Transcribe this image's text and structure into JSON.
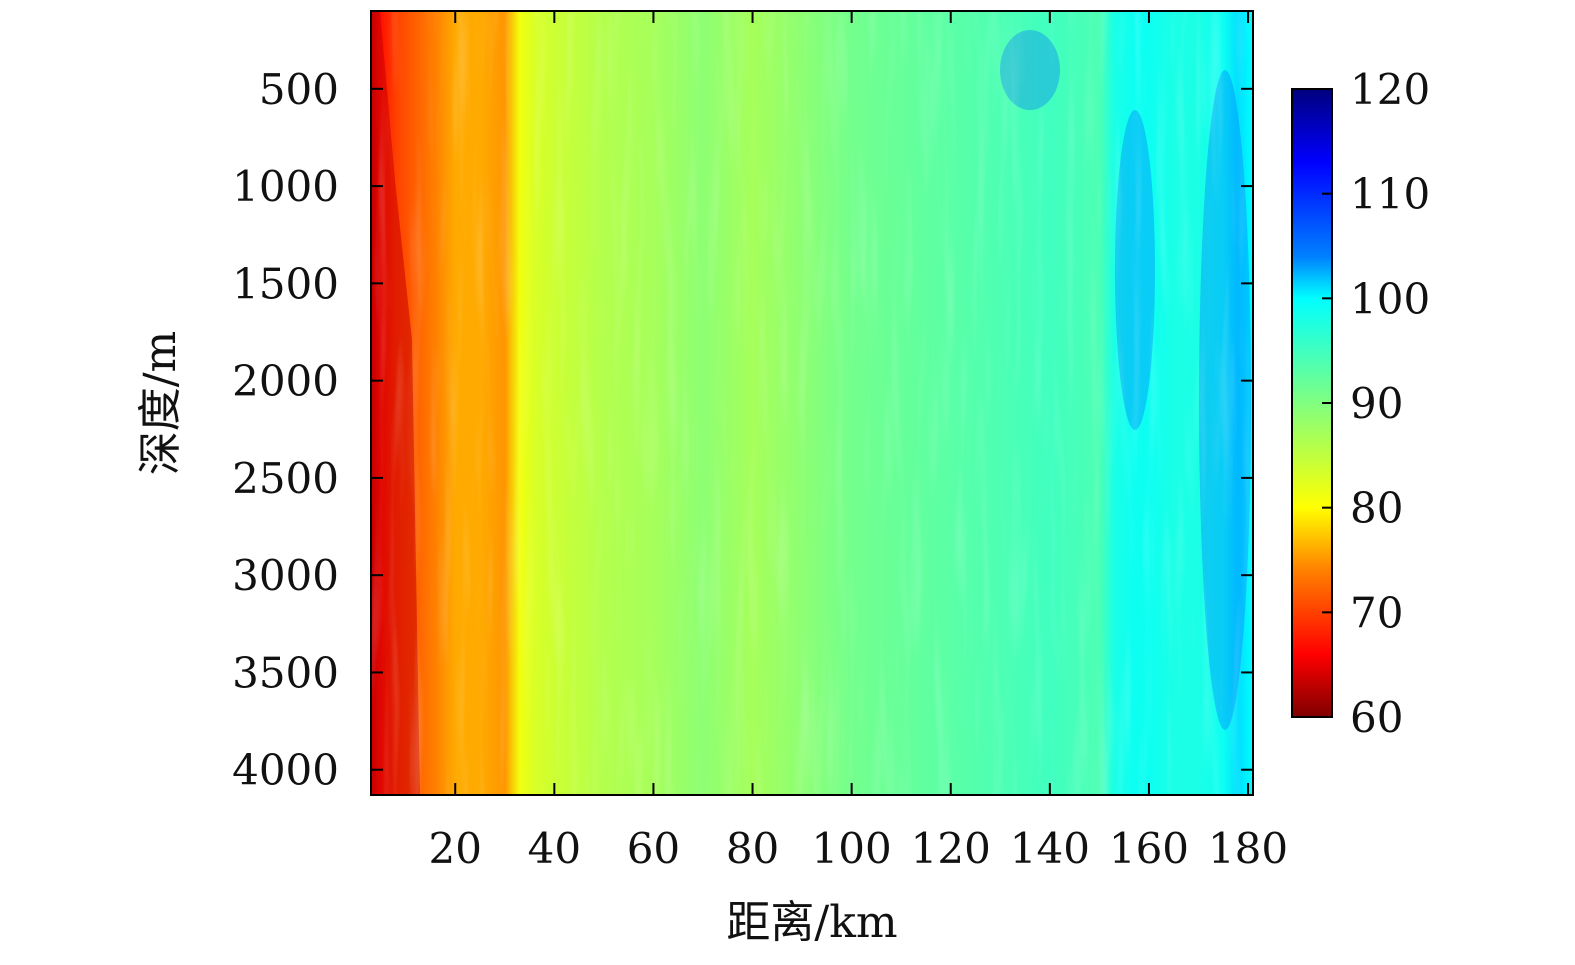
{
  "chart_data": {
    "type": "heatmap",
    "title": "",
    "xlabel": "距离/km",
    "ylabel": "深度/m",
    "xlim": [
      3,
      181
    ],
    "ylim": [
      100,
      4130
    ],
    "y_inverted": true,
    "x_ticks": [
      20,
      40,
      60,
      80,
      100,
      120,
      140,
      160,
      180
    ],
    "x_tick_labels": [
      "20",
      "40",
      "60",
      "80",
      "100",
      "120",
      "140",
      "160",
      "180"
    ],
    "y_ticks": [
      500,
      1000,
      1500,
      2000,
      2500,
      3000,
      3500,
      4000
    ],
    "y_tick_labels": [
      "500",
      "1000",
      "1500",
      "2000",
      "2500",
      "3000",
      "3500",
      "4000"
    ],
    "colormap": "jet (reversed)",
    "colorbar": {
      "range": [
        60,
        120
      ],
      "ticks": [
        60,
        70,
        80,
        90,
        100,
        110,
        120
      ],
      "tick_labels": [
        "60",
        "70",
        "80",
        "90",
        "100",
        "110",
        "120"
      ],
      "stops": [
        {
          "value": 60,
          "color": "#7f0000"
        },
        {
          "value": 66,
          "color": "#ff0000"
        },
        {
          "value": 74,
          "color": "#ff8000"
        },
        {
          "value": 80,
          "color": "#ffff00"
        },
        {
          "value": 90,
          "color": "#80ff80"
        },
        {
          "value": 100,
          "color": "#00ffff"
        },
        {
          "value": 104,
          "color": "#0080ff"
        },
        {
          "value": 113,
          "color": "#0000ff"
        },
        {
          "value": 120,
          "color": "#00007f"
        }
      ]
    },
    "range_profile": {
      "x_km": [
        3,
        5,
        8,
        12,
        16,
        20,
        25,
        30,
        33,
        36,
        40,
        50,
        60,
        70,
        80,
        90,
        100,
        110,
        120,
        130,
        140,
        150,
        153,
        157,
        160,
        165,
        170,
        175,
        178,
        181
      ],
      "value": [
        63,
        67,
        70,
        72,
        74,
        76,
        76,
        75,
        81,
        83,
        84,
        86,
        87,
        89,
        87,
        89,
        91,
        92,
        93,
        94,
        95,
        94,
        98,
        99,
        99,
        98,
        98,
        99,
        101,
        100
      ]
    }
  }
}
